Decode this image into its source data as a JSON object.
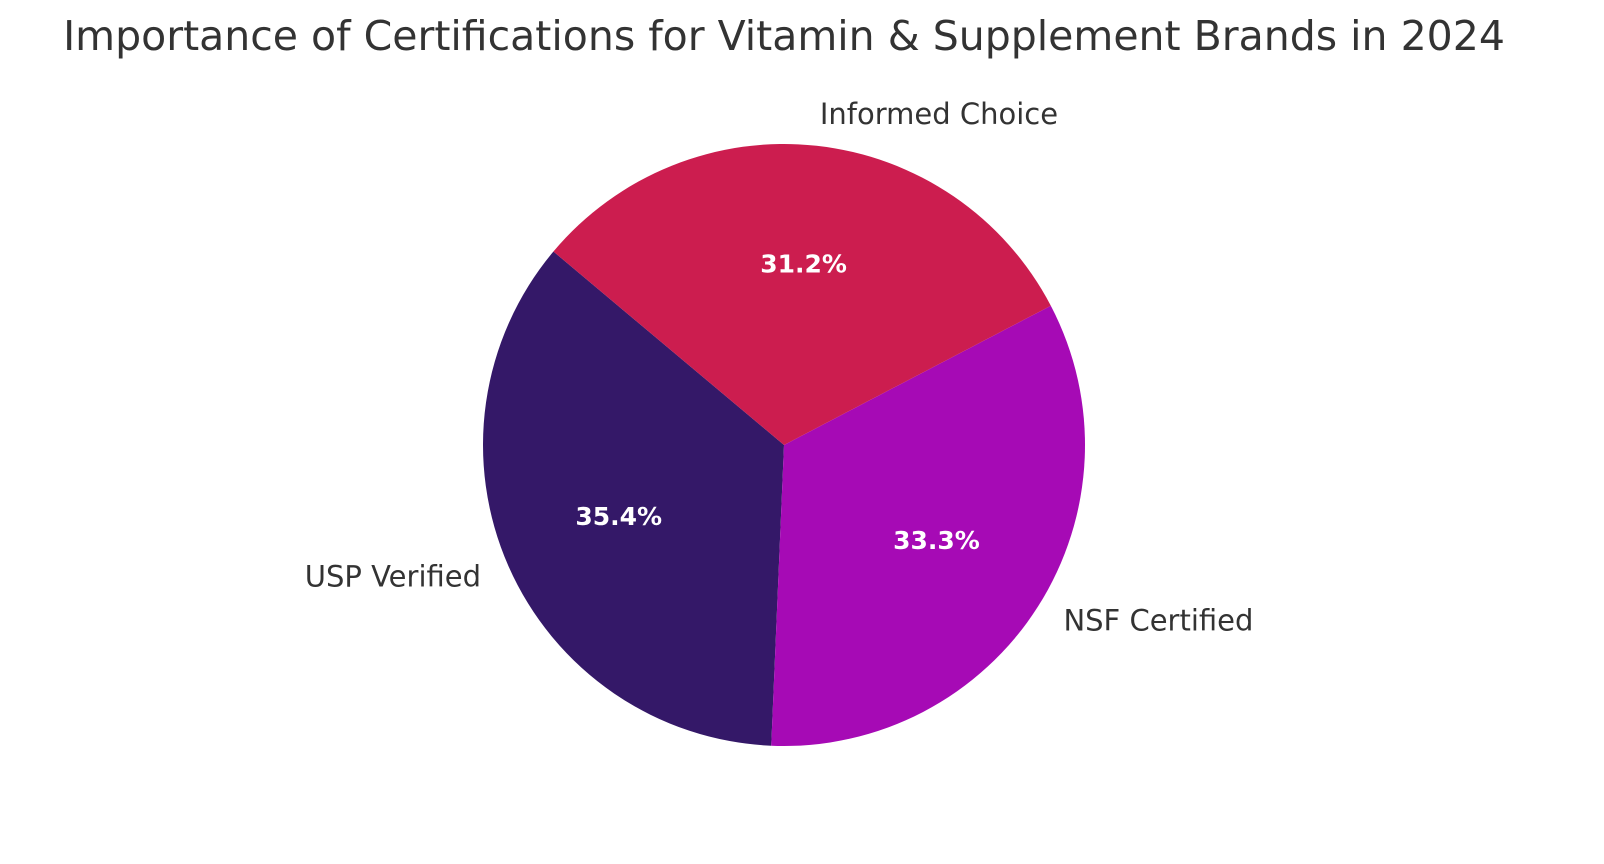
{
  "chart_data": {
    "type": "pie",
    "title": "Importance of Certifications for Vitamin & Supplement Brands in 2024",
    "categories": [
      "USP Verified",
      "NSF Certified",
      "Informed Choice"
    ],
    "values": [
      35.4,
      33.3,
      31.2
    ],
    "value_labels": [
      "35.4%",
      "33.3%",
      "31.2%"
    ],
    "colors": [
      "#341868",
      "#a60ab5",
      "#cc1d4f"
    ]
  }
}
